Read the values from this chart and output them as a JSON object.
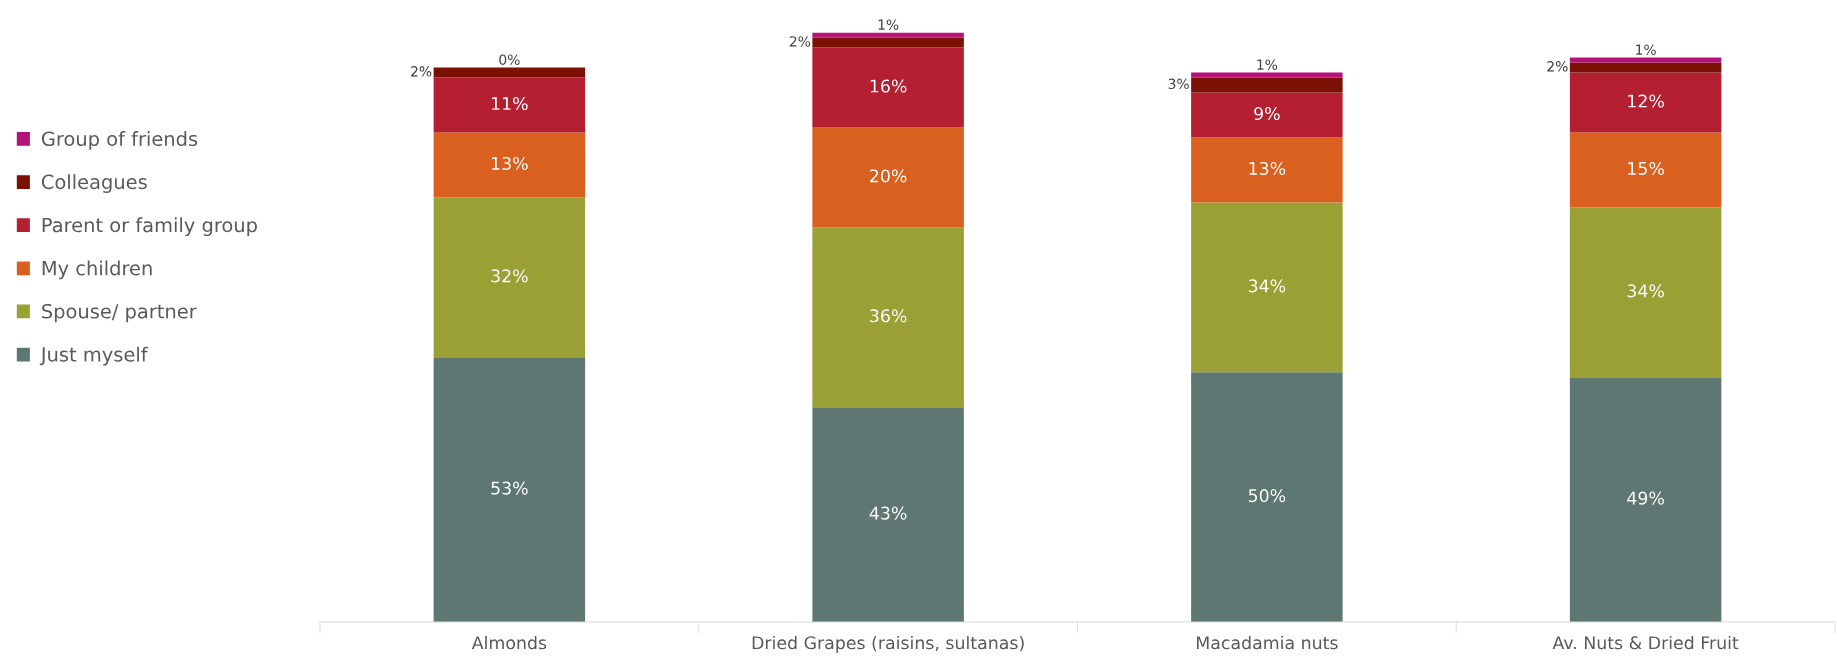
{
  "chart_data": {
    "type": "bar",
    "stacked": true,
    "categories": [
      "Almonds",
      "Dried Grapes (raisins, sultanas)",
      "Macadamia nuts",
      "Av. Nuts & Dried Fruit"
    ],
    "series": [
      {
        "name": "Just myself",
        "color": "#5f7772",
        "values": [
          53,
          43,
          50,
          49
        ],
        "value_labels": [
          "53%",
          "43%",
          "50%",
          "49%"
        ]
      },
      {
        "name": "Spouse/ partner",
        "color": "#9aa034",
        "values": [
          32,
          36,
          34,
          34
        ],
        "value_labels": [
          "32%",
          "36%",
          "34%",
          "34%"
        ]
      },
      {
        "name": "My children",
        "color": "#d9601e",
        "values": [
          13,
          20,
          13,
          15
        ],
        "value_labels": [
          "13%",
          "20%",
          "13%",
          "15%"
        ]
      },
      {
        "name": "Parent or family group",
        "color": "#b41f32",
        "values": [
          11,
          16,
          9,
          12
        ],
        "value_labels": [
          "11%",
          "16%",
          "9%",
          "12%"
        ]
      },
      {
        "name": "Colleagues",
        "color": "#7b1105",
        "values": [
          2,
          2,
          3,
          2
        ],
        "value_labels": [
          "2%",
          "2%",
          "3%",
          "2%"
        ]
      },
      {
        "name": "Group of friends",
        "color": "#b5137a",
        "values": [
          0,
          1,
          1,
          1
        ],
        "value_labels": [
          "0%",
          "1%",
          "1%",
          "1%"
        ]
      }
    ],
    "legend": "left"
  }
}
